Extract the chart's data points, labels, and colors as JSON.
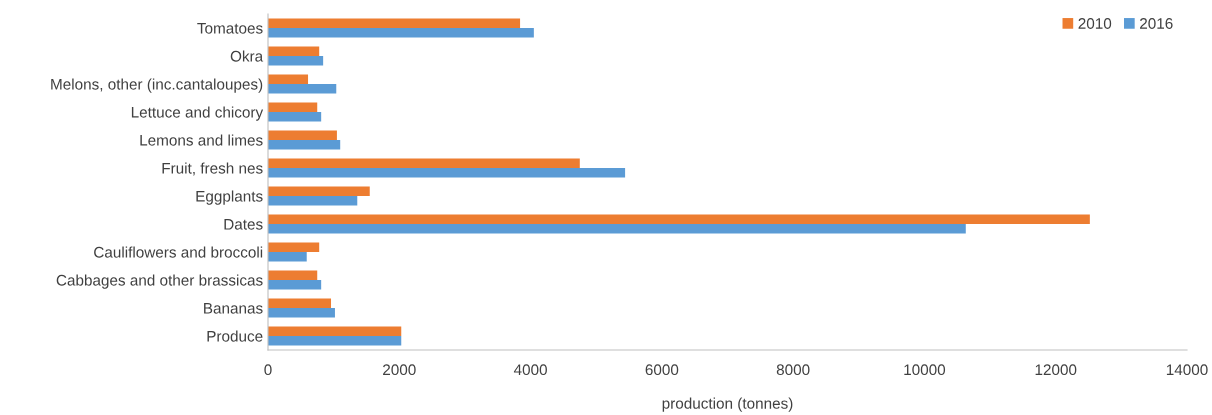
{
  "chart_data": {
    "type": "bar",
    "orientation": "horizontal",
    "xlabel": "production (tonnes)",
    "categories": [
      "Tomatoes",
      "Okra",
      "Melons, other (inc.cantaloupes)",
      "Lettuce and chicory",
      "Lemons and limes",
      "Fruit, fresh nes",
      "Eggplants",
      "Dates",
      "Cauliflowers and broccoli",
      "Cabbages and other brassicas",
      "Bananas",
      "Produce"
    ],
    "series": [
      {
        "name": "2010",
        "color": "#ed7d31",
        "values": [
          3840,
          780,
          610,
          750,
          1050,
          4750,
          1550,
          12520,
          780,
          750,
          960,
          2030
        ]
      },
      {
        "name": "2016",
        "color": "#5b9bd5",
        "values": [
          4050,
          840,
          1040,
          810,
          1100,
          5440,
          1360,
          10630,
          590,
          810,
          1020,
          2030
        ]
      }
    ],
    "xlim": [
      0,
      14000
    ],
    "xticks": [
      0,
      2000,
      4000,
      6000,
      8000,
      10000,
      12000,
      14000
    ],
    "grid": false,
    "legend": "top right"
  }
}
